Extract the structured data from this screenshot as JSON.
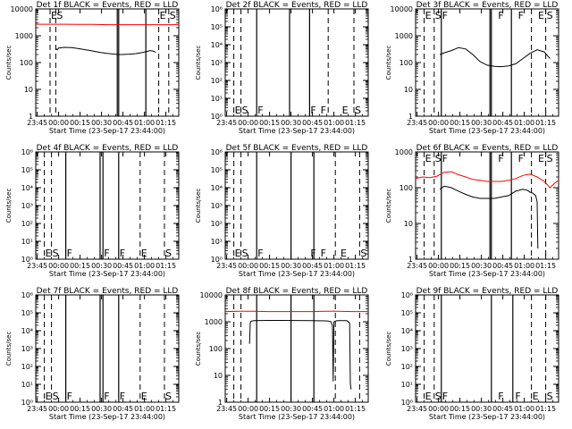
{
  "common": {
    "xlabel": "Start Time (23-Sep-17 23:44:00)",
    "ylabel": "Counts/sec",
    "x_tick_labels": [
      "23:45",
      "00:00",
      "00:15",
      "00:30",
      "00:45",
      "01:00",
      "01:15"
    ],
    "x_ticks_min": [
      1,
      16,
      31,
      46,
      61,
      76,
      91
    ],
    "xlim_min": [
      0,
      100
    ],
    "y_scale": "log",
    "events_color": "#000000",
    "lld_color": "#ff0000"
  },
  "chart_data": [
    {
      "type": "line",
      "title": "Det 1f BLACK = Events, RED = LLD",
      "ylim": [
        1,
        10000
      ],
      "y_tick_labels": [
        "1",
        "10",
        "100",
        "1000",
        "10000"
      ],
      "y_ticks": [
        1,
        10,
        100,
        1000,
        10000
      ],
      "solid_lines": [
        57,
        58,
        77
      ],
      "dashed_lines": [
        10,
        14,
        86,
        93
      ],
      "markers": [
        {
          "x": 10,
          "label": "E"
        },
        {
          "x": 14,
          "label": "S"
        },
        {
          "x": 86,
          "label": "E"
        },
        {
          "x": 93,
          "label": "S"
        }
      ],
      "marker_row": "top",
      "series": [
        {
          "color": "red",
          "x": [
            0,
            10,
            20,
            30,
            40,
            50,
            60,
            70,
            80,
            90,
            100
          ],
          "y": [
            2700,
            2700,
            2700,
            2650,
            2650,
            2600,
            2600,
            2600,
            2600,
            2600,
            2600
          ]
        },
        {
          "color": "black",
          "x": [
            14,
            15,
            16,
            20,
            25,
            30,
            35,
            40,
            45,
            50,
            55,
            58,
            60,
            65,
            70,
            75,
            80,
            82,
            84
          ],
          "y": [
            330,
            300,
            350,
            370,
            360,
            330,
            300,
            270,
            240,
            220,
            205,
            200,
            200,
            205,
            215,
            240,
            280,
            270,
            240
          ]
        }
      ]
    },
    {
      "type": "line",
      "title": "Det 2f BLACK = Events, RED = LLD",
      "ylim": [
        1,
        1000000
      ],
      "y_tick_labels": [
        "10⁰",
        "10¹",
        "10²",
        "10³",
        "10⁴",
        "10⁵",
        "10⁶"
      ],
      "y_ticks": [
        1,
        10,
        100,
        1000,
        10000,
        100000,
        1000000
      ],
      "solid_lines": [
        22,
        45,
        59
      ],
      "dashed_lines": [
        6,
        11,
        72,
        90
      ],
      "markers": [
        {
          "x": 6,
          "label": "E"
        },
        {
          "x": 11,
          "label": "S"
        },
        {
          "x": 22,
          "label": "F"
        },
        {
          "x": 59,
          "label": "F"
        },
        {
          "x": 66,
          "label": "F"
        },
        {
          "x": 81,
          "label": "E"
        },
        {
          "x": 90,
          "label": "S"
        }
      ],
      "marker_row": "bottom",
      "series": []
    },
    {
      "type": "line",
      "title": "Det 3f BLACK = Events, RED = LLD",
      "ylim": [
        1,
        10000
      ],
      "y_tick_labels": [
        "1",
        "10",
        "100",
        "1000",
        "10000"
      ],
      "y_ticks": [
        1,
        10,
        100,
        1000,
        10000
      ],
      "solid_lines": [
        18,
        52,
        53,
        67
      ],
      "dashed_lines": [
        6,
        13,
        81,
        91
      ],
      "markers": [
        {
          "x": 6,
          "label": "E"
        },
        {
          "x": 13,
          "label": "S"
        },
        {
          "x": 18,
          "label": "F"
        },
        {
          "x": 57,
          "label": "F"
        },
        {
          "x": 71,
          "label": "F"
        },
        {
          "x": 85,
          "label": "E"
        },
        {
          "x": 91,
          "label": "S"
        }
      ],
      "marker_row": "top",
      "series": [
        {
          "color": "black",
          "x": [
            17,
            20,
            25,
            30,
            35,
            40,
            45,
            50,
            55,
            60,
            65,
            70,
            75,
            80,
            85,
            90,
            94
          ],
          "y": [
            200,
            230,
            280,
            360,
            320,
            200,
            110,
            80,
            72,
            70,
            75,
            90,
            140,
            220,
            300,
            250,
            140
          ]
        }
      ]
    },
    {
      "type": "line",
      "title": "Det 4f BLACK = Events, RED = LLD",
      "ylim": [
        1,
        1000000
      ],
      "y_tick_labels": [
        "10⁰",
        "10¹",
        "10²",
        "10³",
        "10⁴",
        "10⁵",
        "10⁶"
      ],
      "y_ticks": [
        1,
        10,
        100,
        1000,
        10000,
        100000,
        1000000
      ],
      "solid_lines": [
        21,
        45,
        47,
        58
      ],
      "dashed_lines": [
        6,
        11,
        73,
        90
      ],
      "markers": [
        {
          "x": 6,
          "label": "E"
        },
        {
          "x": 11,
          "label": "S"
        },
        {
          "x": 21,
          "label": "F"
        },
        {
          "x": 47,
          "label": "F"
        },
        {
          "x": 58,
          "label": "F"
        },
        {
          "x": 73,
          "label": "E"
        },
        {
          "x": 90,
          "label": "S"
        }
      ],
      "marker_row": "bottom",
      "series": []
    },
    {
      "type": "line",
      "title": "Det 5f BLACK = Events, RED = LLD",
      "ylim": [
        1,
        1000000
      ],
      "y_tick_labels": [
        "10⁰",
        "10¹",
        "10²",
        "10³",
        "10⁴",
        "10⁵",
        "10⁶"
      ],
      "y_ticks": [
        1,
        10,
        100,
        1000,
        10000,
        100000,
        1000000
      ],
      "solid_lines": [
        22,
        46,
        62
      ],
      "dashed_lines": [
        6,
        11,
        77,
        94
      ],
      "markers": [
        {
          "x": 6,
          "label": "E"
        },
        {
          "x": 11,
          "label": "S"
        },
        {
          "x": 22,
          "label": "F"
        },
        {
          "x": 59,
          "label": "F"
        },
        {
          "x": 66,
          "label": "F"
        },
        {
          "x": 80,
          "label": "E"
        },
        {
          "x": 94,
          "label": "S"
        }
      ],
      "marker_row": "bottom",
      "series": []
    },
    {
      "type": "line",
      "title": "Det 6f BLACK = Events, RED = LLD",
      "ylim": [
        1,
        1000
      ],
      "y_tick_labels": [
        "1",
        "10",
        "100",
        "1000"
      ],
      "y_ticks": [
        1,
        10,
        100,
        1000
      ],
      "solid_lines": [
        18,
        52,
        53,
        67
      ],
      "dashed_lines": [
        6,
        13,
        81,
        91
      ],
      "markers": [
        {
          "x": 6,
          "label": "E"
        },
        {
          "x": 13,
          "label": "S"
        },
        {
          "x": 18,
          "label": "F"
        },
        {
          "x": 57,
          "label": "F"
        },
        {
          "x": 71,
          "label": "F"
        },
        {
          "x": 85,
          "label": "E"
        },
        {
          "x": 91,
          "label": "S"
        }
      ],
      "marker_row": "top",
      "series": [
        {
          "color": "red",
          "x": [
            0,
            5,
            10,
            15,
            20,
            25,
            30,
            35,
            40,
            45,
            50,
            55,
            60,
            65,
            70,
            75,
            80,
            85,
            90,
            94,
            97,
            100
          ],
          "y": [
            180,
            200,
            190,
            210,
            270,
            280,
            230,
            200,
            170,
            160,
            150,
            150,
            150,
            160,
            180,
            220,
            240,
            200,
            150,
            100,
            130,
            160
          ]
        },
        {
          "color": "black",
          "x": [
            17,
            20,
            25,
            30,
            35,
            40,
            45,
            50,
            55,
            60,
            65,
            70,
            75,
            78,
            80,
            82,
            84,
            85,
            85.5
          ],
          "y": [
            90,
            110,
            100,
            80,
            65,
            55,
            50,
            50,
            50,
            55,
            60,
            80,
            90,
            85,
            75,
            70,
            60,
            40,
            2
          ]
        }
      ]
    },
    {
      "type": "line",
      "title": "Det 7f BLACK = Events, RED = LLD",
      "ylim": [
        1,
        1000000
      ],
      "y_tick_labels": [
        "10⁰",
        "10¹",
        "10²",
        "10³",
        "10⁴",
        "10⁵",
        "10⁶"
      ],
      "y_ticks": [
        1,
        10,
        100,
        1000,
        10000,
        100000,
        1000000
      ],
      "solid_lines": [
        21,
        45,
        47,
        58
      ],
      "dashed_lines": [
        6,
        11,
        73,
        90
      ],
      "markers": [
        {
          "x": 6,
          "label": "E"
        },
        {
          "x": 11,
          "label": "S"
        },
        {
          "x": 21,
          "label": "F"
        },
        {
          "x": 47,
          "label": "F"
        },
        {
          "x": 58,
          "label": "F"
        },
        {
          "x": 73,
          "label": "E"
        },
        {
          "x": 90,
          "label": "S"
        }
      ],
      "marker_row": "bottom",
      "series": []
    },
    {
      "type": "line",
      "title": "Det 8f BLACK = Events, RED = LLD",
      "ylim": [
        1,
        10000
      ],
      "y_tick_labels": [
        "1",
        "10",
        "100",
        "1000",
        "10000"
      ],
      "y_ticks": [
        1,
        10,
        100,
        1000,
        10000
      ],
      "solid_lines": [
        22,
        46,
        62
      ],
      "dashed_lines": [
        6,
        11,
        77,
        94
      ],
      "markers": [],
      "marker_row": "top",
      "series": [
        {
          "color": "red",
          "x": [
            0,
            10,
            20,
            30,
            40,
            50,
            60,
            70,
            80,
            90,
            100
          ],
          "y": [
            2400,
            2450,
            2450,
            2400,
            2400,
            2400,
            2400,
            2450,
            2450,
            2400,
            2400
          ]
        },
        {
          "color": "black",
          "x": [
            17,
            17.5,
            18,
            20,
            30,
            40,
            50,
            60,
            70,
            72,
            74,
            75,
            75.5,
            76,
            78,
            80,
            85,
            87,
            87.5,
            88
          ],
          "y": [
            150,
            900,
            1050,
            1100,
            1120,
            1120,
            1110,
            1100,
            1080,
            1060,
            1000,
            700,
            6,
            1000,
            1100,
            1100,
            1100,
            900,
            5,
            3
          ]
        }
      ]
    },
    {
      "type": "line",
      "title": "Det 9f BLACK = Events, RED = LLD",
      "ylim": [
        1,
        1000000
      ],
      "y_tick_labels": [
        "10⁰",
        "10¹",
        "10²",
        "10³",
        "10⁴",
        "10⁵",
        "10⁶"
      ],
      "y_ticks": [
        1,
        10,
        100,
        1000,
        10000,
        100000,
        1000000
      ],
      "solid_lines": [
        18,
        53,
        68
      ],
      "dashed_lines": [
        6,
        13,
        81,
        91
      ],
      "markers": [
        {
          "x": 6,
          "label": "E"
        },
        {
          "x": 13,
          "label": "S"
        },
        {
          "x": 18,
          "label": "F"
        },
        {
          "x": 57,
          "label": "F"
        },
        {
          "x": 69,
          "label": "F"
        },
        {
          "x": 81,
          "label": "E"
        },
        {
          "x": 91,
          "label": "S"
        }
      ],
      "marker_row": "bottom",
      "series": []
    }
  ]
}
